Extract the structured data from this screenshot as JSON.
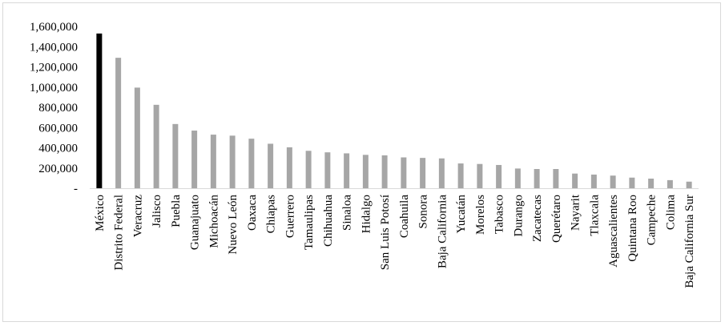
{
  "chart_data": {
    "type": "bar",
    "title": "",
    "xlabel": "",
    "ylabel": "",
    "ylim": [
      0,
      1600000
    ],
    "y_ticks": [
      "-",
      "200,000",
      "400,000",
      "600,000",
      "800,000",
      "1,000,000",
      "1,200,000",
      "1,400,000",
      "1,600,000"
    ],
    "y_tick_values": [
      0,
      200000,
      400000,
      600000,
      800000,
      1000000,
      1200000,
      1400000,
      1600000
    ],
    "grid": false,
    "legend": "none",
    "colors": {
      "highlight": "#000000",
      "default": "#a6a6a6"
    },
    "categories": [
      "México",
      "Distrito Federal",
      "Veracruz",
      "Jalisco",
      "Puebla",
      "Guanajuato",
      "Michoacán",
      "Nuevo León",
      "Oaxaca",
      "Chiapas",
      "Guerrero",
      "Tamaulipas",
      "Chihuahua",
      "Sinaloa",
      "Hidalgo",
      "San Luis Potosí",
      "Coahuila",
      "Sonora",
      "Baja California",
      "Yucatán",
      "Morelos",
      "Tabasco",
      "Durango",
      "Zacatecas",
      "Querétaro",
      "Nayarit",
      "Tlaxcala",
      "Aguascalientes",
      "Quintana Roo",
      "Campeche",
      "Colima",
      "Baja California Sur"
    ],
    "values": [
      1530000,
      1290000,
      995000,
      825000,
      635000,
      570000,
      530000,
      520000,
      490000,
      440000,
      405000,
      370000,
      355000,
      345000,
      330000,
      325000,
      305000,
      300000,
      295000,
      245000,
      240000,
      230000,
      195000,
      190000,
      190000,
      145000,
      135000,
      125000,
      105000,
      95000,
      80000,
      65000
    ],
    "highlight_index": 0
  }
}
